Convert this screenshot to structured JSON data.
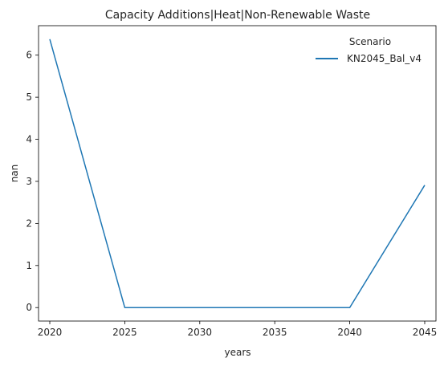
{
  "chart_data": {
    "type": "line",
    "title": "Capacity Additions|Heat|Non-Renewable Waste",
    "xlabel": "years",
    "ylabel": "nan",
    "x": [
      2020,
      2025,
      2030,
      2035,
      2040,
      2045
    ],
    "series": [
      {
        "name": "KN2045_Bal_v4",
        "color": "#1f77b4",
        "values": [
          6.38,
          0,
          0,
          0,
          0,
          2.91
        ]
      }
    ],
    "xlim": [
      2019.25,
      2045.75
    ],
    "ylim": [
      -0.32,
      6.7
    ],
    "xticks": [
      2020,
      2025,
      2030,
      2035,
      2040,
      2045
    ],
    "yticks": [
      0,
      1,
      2,
      3,
      4,
      5,
      6
    ],
    "legend": {
      "title": "Scenario",
      "position": "top-right"
    },
    "grid": false
  }
}
